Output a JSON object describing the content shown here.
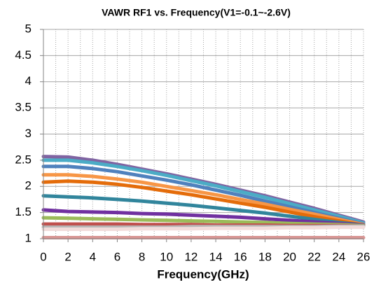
{
  "chart_data": {
    "type": "line",
    "title": "VAWR RF1  vs. Frequency(V1=-0.1~-2.6V)",
    "x_label": "Frequency(GHz)",
    "x": [
      0,
      2,
      4,
      6,
      8,
      10,
      12,
      14,
      16,
      18,
      20,
      22,
      24,
      26
    ],
    "xlim": [
      0,
      26
    ],
    "xticks": [
      0,
      2,
      4,
      6,
      8,
      10,
      12,
      14,
      16,
      18,
      20,
      22,
      24,
      26
    ],
    "ylim": [
      1,
      5
    ],
    "yticks": [
      1,
      1.5,
      2,
      2.5,
      3,
      3.5,
      4,
      4.5,
      5
    ],
    "grid": true,
    "series": [
      {
        "color": "#8064a2",
        "values": [
          2.57,
          2.56,
          2.5,
          2.42,
          2.33,
          2.24,
          2.14,
          2.04,
          1.93,
          1.82,
          1.7,
          1.58,
          1.45,
          1.32
        ]
      },
      {
        "color": "#4bacc6",
        "values": [
          2.5,
          2.5,
          2.45,
          2.38,
          2.3,
          2.21,
          2.11,
          2.01,
          1.9,
          1.79,
          1.67,
          1.55,
          1.43,
          1.3
        ]
      },
      {
        "color": "#4f81bd",
        "values": [
          2.38,
          2.38,
          2.34,
          2.28,
          2.2,
          2.12,
          2.03,
          1.93,
          1.83,
          1.72,
          1.61,
          1.5,
          1.39,
          1.28
        ]
      },
      {
        "color": "#f79646",
        "values": [
          2.22,
          2.22,
          2.19,
          2.14,
          2.08,
          2.0,
          1.92,
          1.84,
          1.75,
          1.66,
          1.56,
          1.47,
          1.37,
          1.27
        ]
      },
      {
        "color": "#e46c0a",
        "values": [
          2.08,
          2.1,
          2.08,
          2.04,
          1.98,
          1.91,
          1.84,
          1.76,
          1.68,
          1.6,
          1.51,
          1.42,
          1.34,
          1.26
        ]
      },
      {
        "color": "#31859c",
        "values": [
          1.82,
          1.8,
          1.78,
          1.75,
          1.72,
          1.68,
          1.64,
          1.59,
          1.54,
          1.49,
          1.43,
          1.37,
          1.31,
          1.26
        ]
      },
      {
        "color": "#7030a0",
        "values": [
          1.55,
          1.52,
          1.51,
          1.5,
          1.48,
          1.47,
          1.45,
          1.43,
          1.41,
          1.38,
          1.35,
          1.32,
          1.29,
          1.26
        ]
      },
      {
        "color": "#9bbb59",
        "values": [
          1.4,
          1.39,
          1.38,
          1.37,
          1.36,
          1.35,
          1.34,
          1.33,
          1.32,
          1.31,
          1.29,
          1.28,
          1.27,
          1.25
        ]
      },
      {
        "color": "#c0504d",
        "values": [
          1.28,
          1.28,
          1.28,
          1.28,
          1.27,
          1.27,
          1.27,
          1.26,
          1.26,
          1.26,
          1.25,
          1.25,
          1.25,
          1.24
        ]
      },
      {
        "color": "#b7b7b7",
        "values": [
          1.22,
          1.22,
          1.22,
          1.22,
          1.22,
          1.22,
          1.23,
          1.23,
          1.23,
          1.23,
          1.23,
          1.23,
          1.24,
          1.24
        ]
      },
      {
        "color": "#f2dcdb",
        "values": [
          1.18,
          1.18,
          1.18,
          1.18,
          1.19,
          1.19,
          1.19,
          1.2,
          1.2,
          1.2,
          1.21,
          1.21,
          1.22,
          1.22
        ]
      },
      {
        "color": "#d99694",
        "values": [
          1.02,
          1.02,
          1.02,
          1.02,
          1.02,
          1.02,
          1.02,
          1.02,
          1.02,
          1.02,
          1.02,
          1.02,
          1.02,
          1.02
        ]
      }
    ]
  }
}
